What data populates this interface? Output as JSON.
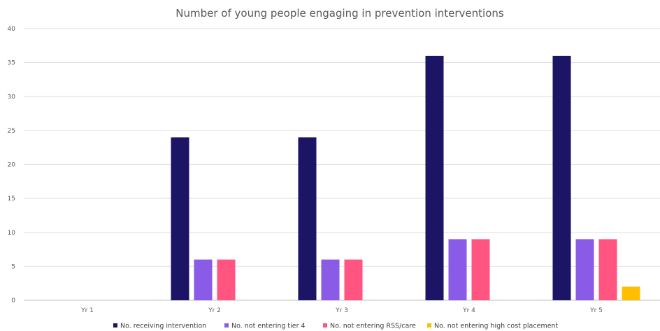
{
  "chart_data": {
    "type": "bar",
    "title": "Number of young people engaging in prevention interventions",
    "xlabel": "",
    "ylabel": "",
    "categories": [
      "Yr 1",
      "Yr 2",
      "Yr 3",
      "Yr 4",
      "Yr 5"
    ],
    "yticks": [
      "0",
      "5",
      "10",
      "15",
      "20",
      "25",
      "30",
      "35",
      "40"
    ],
    "ylim": [
      0,
      40
    ],
    "grid": true,
    "legend_position": "bottom",
    "series": [
      {
        "name": "No. receiving intervention",
        "color": "#1c1464",
        "values": [
          0,
          24,
          24,
          36,
          36
        ]
      },
      {
        "name": "No. not entering tier 4",
        "color": "#8a5be6",
        "values": [
          0,
          6,
          6,
          9,
          9
        ]
      },
      {
        "name": "No. not entering RSS/care",
        "color": "#ff5580",
        "values": [
          0,
          6,
          6,
          9,
          9
        ]
      },
      {
        "name": "No. not entering high cost placement",
        "color": "#ffbf00",
        "values": [
          0,
          0,
          0,
          0,
          2
        ]
      }
    ]
  }
}
